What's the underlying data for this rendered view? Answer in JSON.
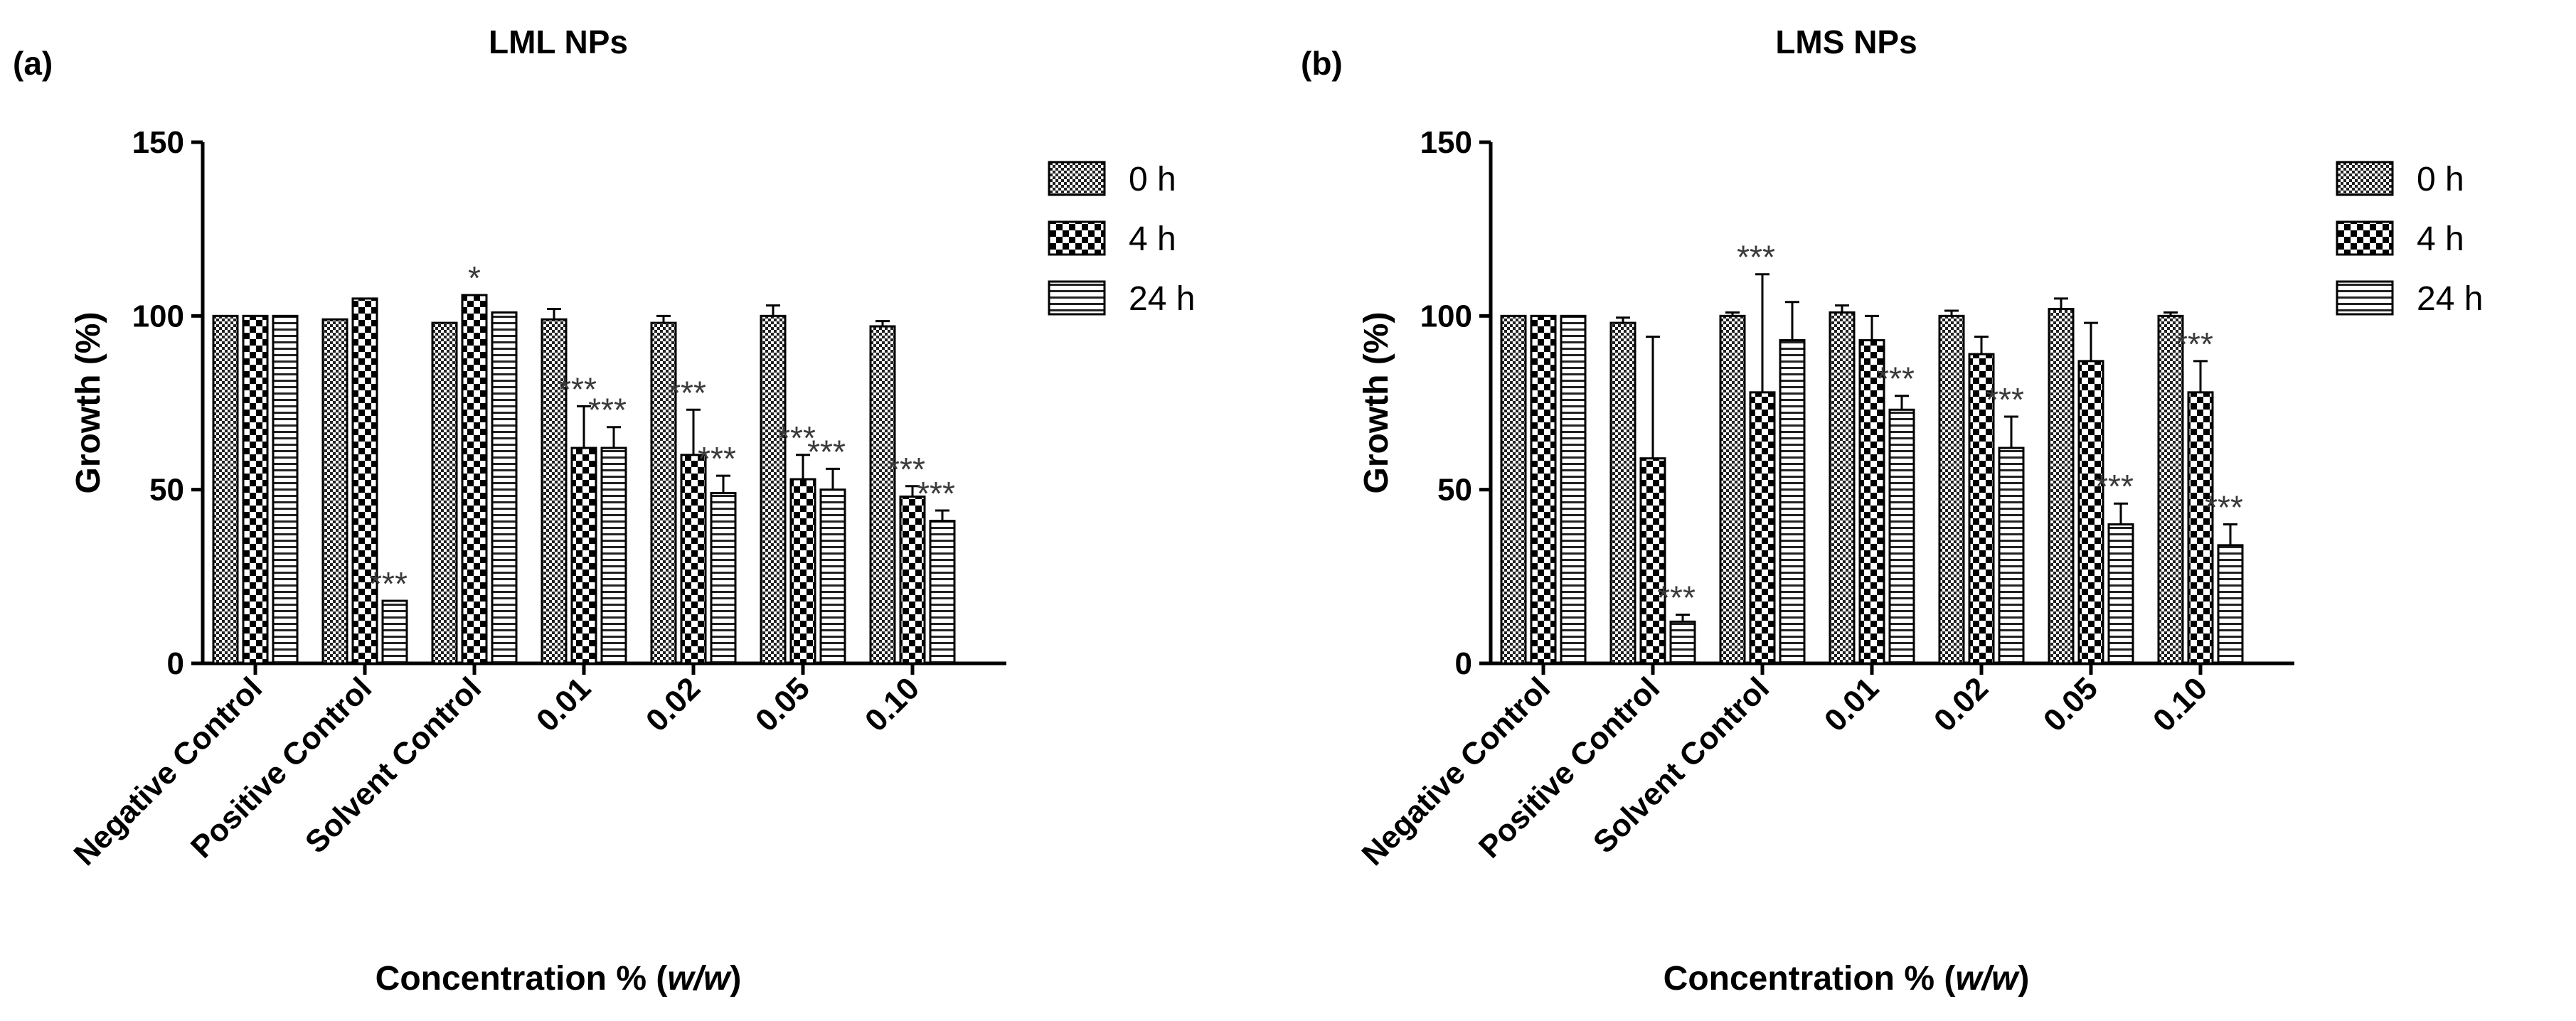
{
  "chart_data": [
    {
      "type": "bar",
      "panel_label": "(a)",
      "title": "LML NPs",
      "xlabel_prefix": "Concentration % (",
      "xlabel_italic": "w/w",
      "xlabel_suffix": ")",
      "ylabel": "Growth (%)",
      "ylim": [
        0,
        150
      ],
      "yticks": [
        "0",
        "50",
        "100",
        "150"
      ],
      "categories": [
        "Negative Control",
        "Positive Control",
        "Solvent Control",
        "0.01",
        "0.02",
        "0.05",
        "0.10"
      ],
      "series": [
        {
          "name": "0 h",
          "pattern": "checker-fine",
          "values": [
            100,
            99,
            98,
            99,
            98,
            100,
            97
          ],
          "errors": [
            0,
            0,
            0,
            3,
            2,
            3,
            1.5
          ],
          "annotations": [
            "",
            "",
            "",
            "",
            "",
            "",
            ""
          ]
        },
        {
          "name": "4 h",
          "pattern": "checker-coarse",
          "values": [
            100,
            105,
            106,
            62,
            60,
            53,
            48
          ],
          "errors": [
            0,
            0,
            0,
            12,
            13,
            7,
            3
          ],
          "annotations": [
            "",
            "",
            "*",
            "***",
            "***",
            "***",
            "***"
          ]
        },
        {
          "name": "24 h",
          "pattern": "horizontal-lines",
          "values": [
            100,
            18,
            101,
            62,
            49,
            50,
            41
          ],
          "errors": [
            0,
            0,
            0,
            6,
            5,
            6,
            3
          ],
          "annotations": [
            "",
            "***",
            "",
            "***",
            "***",
            "***",
            "***"
          ]
        }
      ],
      "legend_position": "top-right"
    },
    {
      "type": "bar",
      "panel_label": "(b)",
      "title": "LMS NPs",
      "xlabel_prefix": "Concentration % (",
      "xlabel_italic": "w/w",
      "xlabel_suffix": ")",
      "ylabel": "Growth (%)",
      "ylim": [
        0,
        150
      ],
      "yticks": [
        "0",
        "50",
        "100",
        "150"
      ],
      "categories": [
        "Negative Control",
        "Positive Control",
        "Solvent Control",
        "0.01",
        "0.02",
        "0.05",
        "0.10"
      ],
      "series": [
        {
          "name": "0 h",
          "pattern": "checker-fine",
          "values": [
            100,
            98,
            100,
            101,
            100,
            102,
            100
          ],
          "errors": [
            0,
            1.5,
            1,
            2,
            1.5,
            3,
            1
          ],
          "annotations": [
            "",
            "",
            "",
            "",
            "",
            "",
            ""
          ]
        },
        {
          "name": "4 h",
          "pattern": "checker-coarse",
          "values": [
            100,
            59,
            78,
            93,
            89,
            87,
            78
          ],
          "errors": [
            0,
            35,
            34,
            7,
            5,
            11,
            9
          ],
          "annotations": [
            "",
            "",
            "***",
            "",
            "",
            "",
            "***"
          ]
        },
        {
          "name": "24 h",
          "pattern": "horizontal-lines",
          "values": [
            100,
            12,
            93,
            73,
            62,
            40,
            34
          ],
          "errors": [
            0,
            2,
            11,
            4,
            9,
            6,
            6
          ],
          "annotations": [
            "",
            "***",
            "",
            "***",
            "***",
            "***",
            "***"
          ]
        }
      ],
      "legend_position": "top-right"
    }
  ]
}
